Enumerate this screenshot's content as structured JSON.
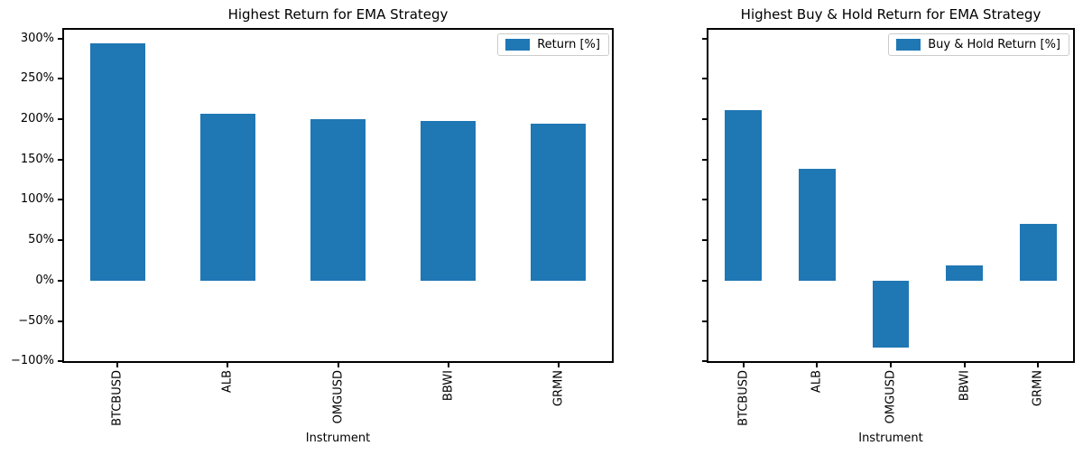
{
  "figure": {
    "background": "#ffffff",
    "bar_color": "#1f77b4",
    "spine_color": "#000000",
    "legend_border_color": "#cccccc"
  },
  "chart_data": [
    {
      "type": "bar",
      "title": "Highest Return for EMA Strategy",
      "xlabel": "Instrument",
      "legend": {
        "label": "Return [%]",
        "position": "upper right"
      },
      "categories": [
        "BTCBUSD",
        "ALB",
        "OMGUSD",
        "BBWI",
        "GRMN"
      ],
      "values": [
        294,
        207,
        200,
        198,
        194
      ],
      "ylim": [
        -101.9,
        312.9
      ],
      "yticks": [
        300,
        250,
        200,
        150,
        100,
        50,
        0,
        -50,
        -100
      ],
      "ytick_suffix": "%",
      "show_ytick_labels": true,
      "grid": false,
      "bar_width_fraction": 0.5
    },
    {
      "type": "bar",
      "title": "Highest Buy & Hold Return for EMA Strategy",
      "xlabel": "Instrument",
      "legend": {
        "label": "Buy & Hold Return [%]",
        "position": "upper right"
      },
      "categories": [
        "BTCBUSD",
        "ALB",
        "OMGUSD",
        "BBWI",
        "GRMN"
      ],
      "values": [
        211,
        139,
        -83,
        19,
        70
      ],
      "ylim": [
        -101.9,
        312.9
      ],
      "yticks": [
        300,
        250,
        200,
        150,
        100,
        50,
        0,
        -50,
        -100
      ],
      "ytick_suffix": "%",
      "show_ytick_labels": false,
      "grid": false,
      "bar_width_fraction": 0.5
    }
  ]
}
